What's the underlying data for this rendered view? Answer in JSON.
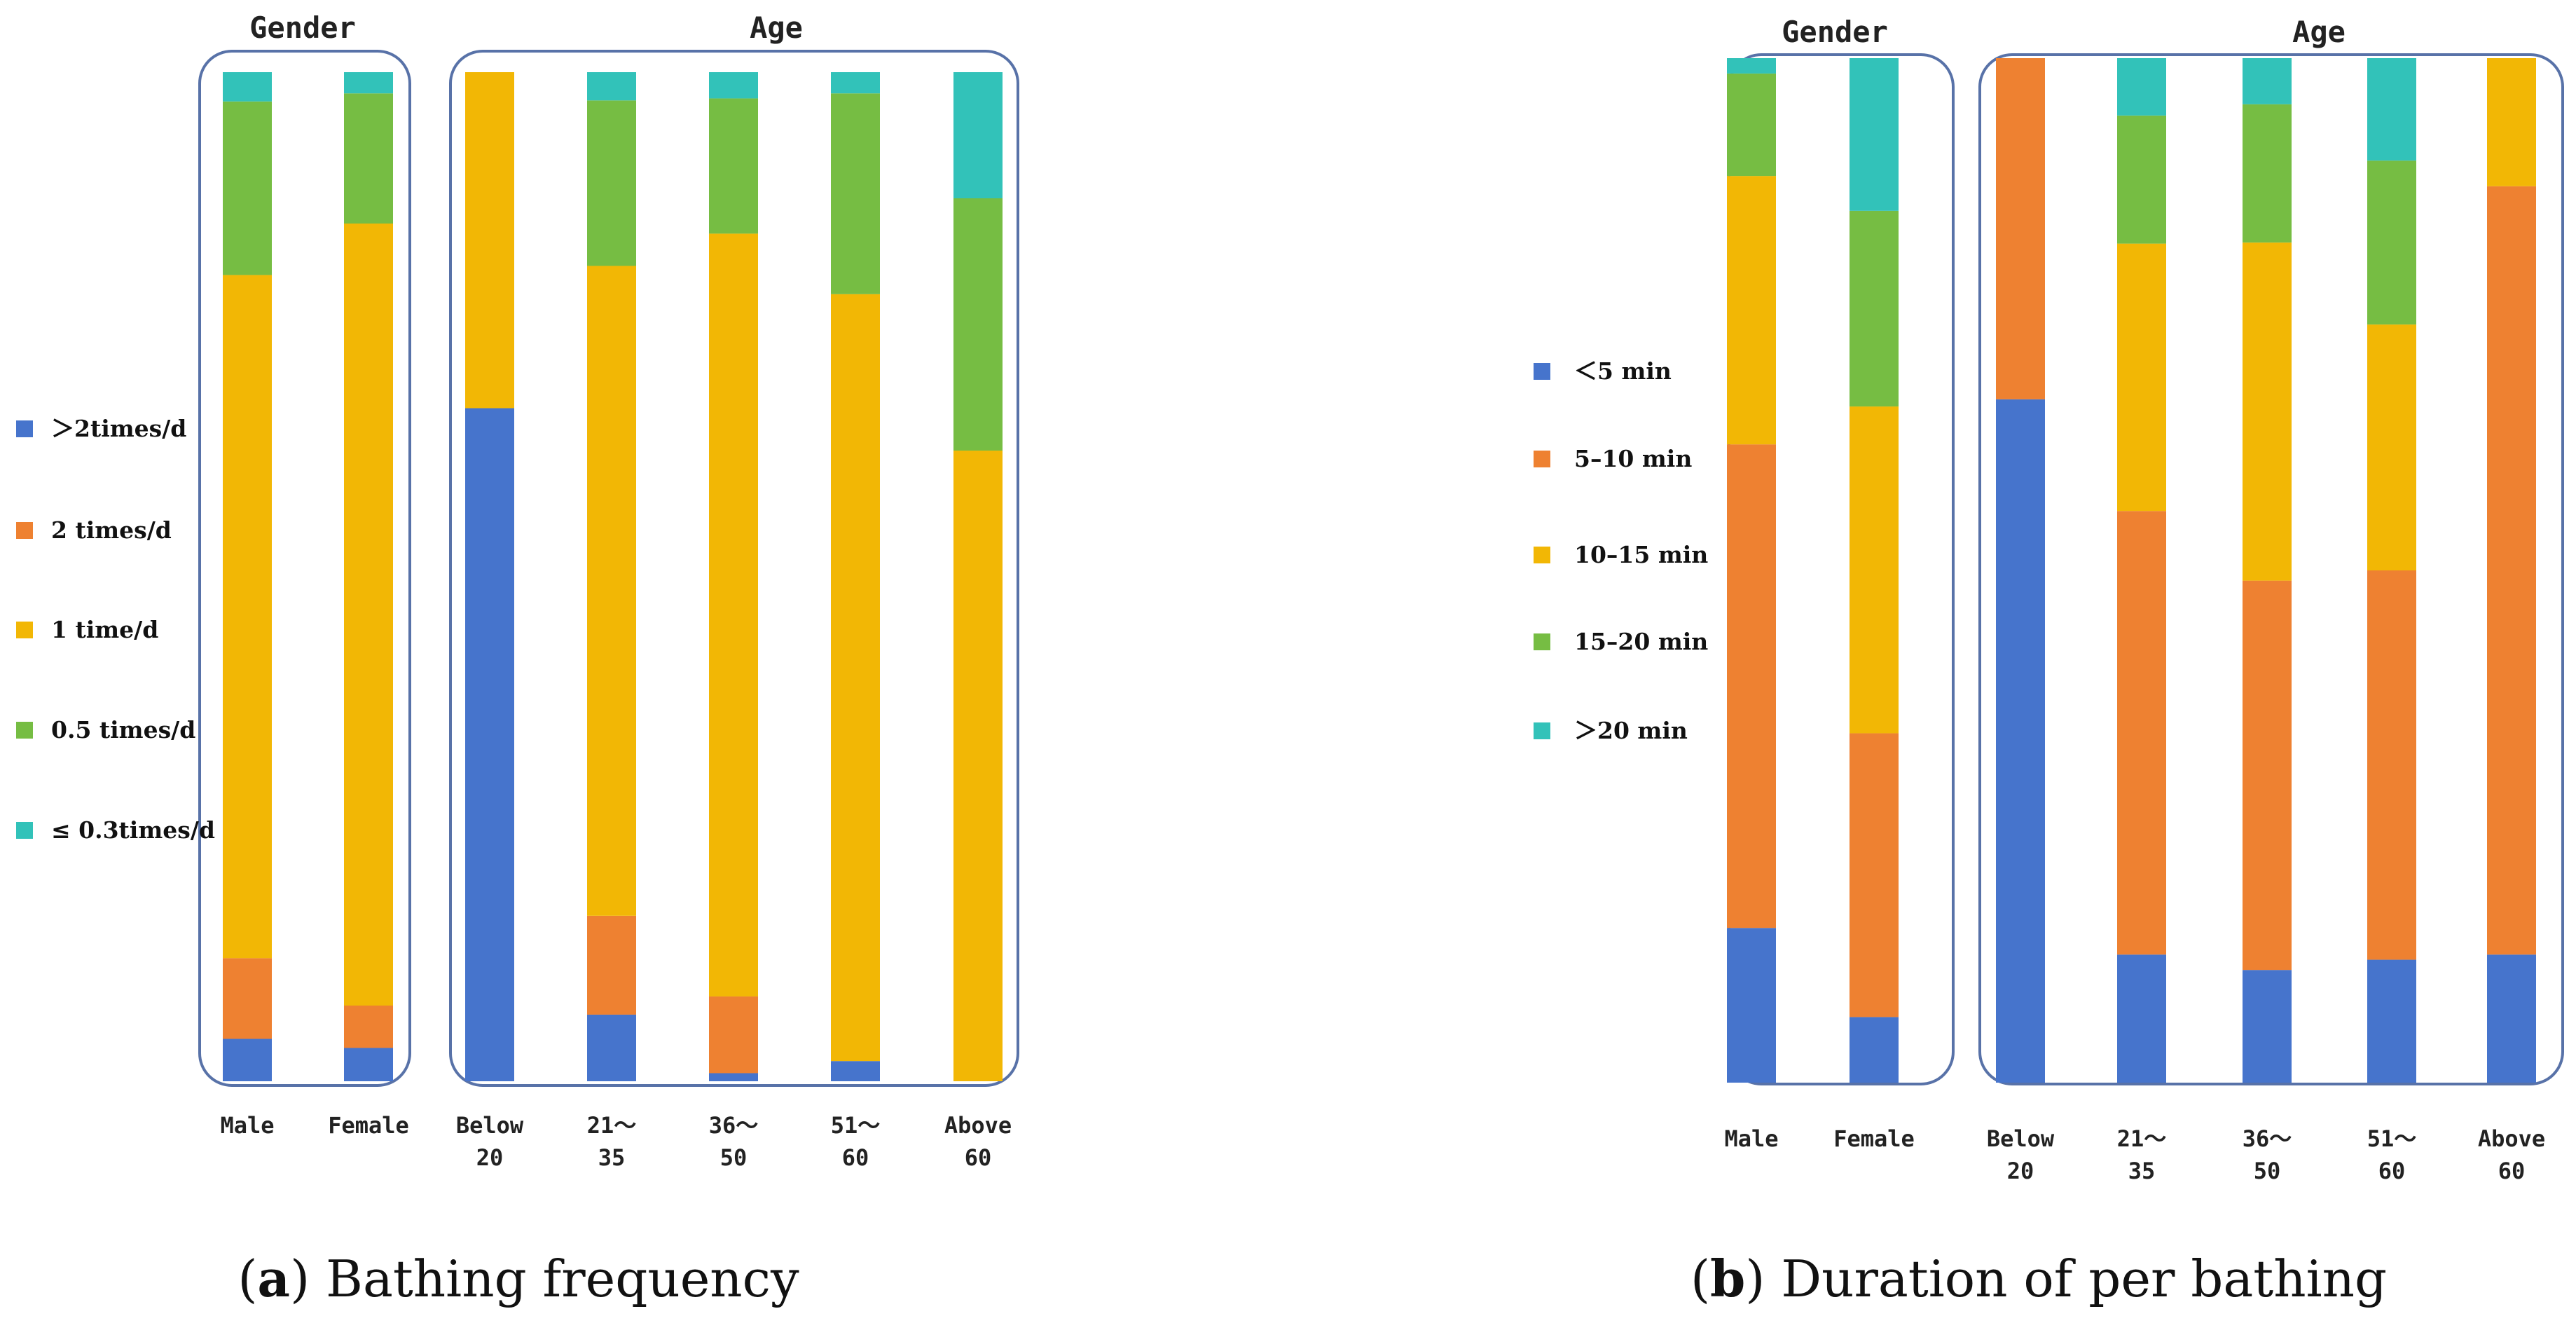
{
  "colors": {
    "blue": "#4674cc",
    "orange": "#ee8131",
    "yellow": "#f2b705",
    "green": "#76bd43",
    "teal": "#32c2b9",
    "frame": "#5872a8"
  },
  "chart_data": [
    {
      "type": "bar",
      "stacked": true,
      "normalized": true,
      "title": "Bathing frequency",
      "caption": {
        "letter": "a",
        "text": "Bathing frequency"
      },
      "group_titles": [
        "Gender",
        "Age"
      ],
      "groups": [
        {
          "title": "Gender",
          "categories": [
            "Male",
            "Female"
          ]
        },
        {
          "title": "Age",
          "categories": [
            "Below\n20",
            "21～\n35",
            "36～\n50",
            "51～\n60",
            "Above\n60"
          ]
        }
      ],
      "categories": [
        "Male",
        "Female",
        "Below 20",
        "21～35",
        "36～50",
        "51～60",
        "Above 60"
      ],
      "tick_labels": [
        [
          "Male"
        ],
        [
          "Female"
        ],
        [
          "Below",
          "20"
        ],
        [
          "21～",
          "35"
        ],
        [
          "36～",
          "50"
        ],
        [
          "51～",
          "60"
        ],
        [
          "Above",
          "60"
        ]
      ],
      "series": [
        {
          "name": "＞2times/d",
          "color": "#4674cc",
          "values": [
            4.2,
            3.3,
            66.7,
            6.6,
            0.8,
            2.0,
            0
          ]
        },
        {
          "name": "2 times/d",
          "color": "#ee8131",
          "values": [
            8.0,
            4.2,
            0,
            9.8,
            7.6,
            0,
            0
          ]
        },
        {
          "name": "1 time/d",
          "color": "#f2b705",
          "values": [
            67.7,
            77.5,
            33.3,
            64.4,
            75.6,
            76.0,
            62.5
          ]
        },
        {
          "name": "0.5 times/d",
          "color": "#76bd43",
          "values": [
            17.2,
            12.9,
            0,
            16.4,
            13.4,
            19.9,
            25.0
          ]
        },
        {
          "name": "≤ 0.3times/d",
          "color": "#32c2b9",
          "values": [
            2.9,
            2.1,
            0,
            2.8,
            2.6,
            2.1,
            12.5
          ]
        }
      ],
      "ylim": [
        0,
        100
      ],
      "legend": "left"
    },
    {
      "type": "bar",
      "stacked": true,
      "normalized": true,
      "title": "Duration of per bathing",
      "caption": {
        "letter": "b",
        "text": "Duration of per bathing"
      },
      "group_titles": [
        "Gender",
        "Age"
      ],
      "groups": [
        {
          "title": "Gender",
          "categories": [
            "Male",
            "Female"
          ]
        },
        {
          "title": "Age",
          "categories": [
            "Below\n20",
            "21～\n35",
            "36～\n50",
            "51～\n60",
            "Above\n60"
          ]
        }
      ],
      "categories": [
        "Male",
        "Female",
        "Below 20",
        "21～35",
        "36～50",
        "51～60",
        "Above 60"
      ],
      "tick_labels": [
        [
          "Male"
        ],
        [
          "Female"
        ],
        [
          "Below",
          "20"
        ],
        [
          "21～",
          "35"
        ],
        [
          "36～",
          "50"
        ],
        [
          "51～",
          "60"
        ],
        [
          "Above",
          "60"
        ]
      ],
      "series": [
        {
          "name": "＜5 min",
          "color": "#4674cc",
          "values": [
            15.1,
            6.4,
            66.7,
            12.5,
            11.0,
            12.0,
            12.5
          ]
        },
        {
          "name": "5–10 min",
          "color": "#ee8131",
          "values": [
            47.2,
            27.7,
            33.3,
            43.3,
            38.0,
            38.0,
            75.0
          ]
        },
        {
          "name": "10–15 min",
          "color": "#f2b705",
          "values": [
            26.2,
            31.9,
            0,
            26.1,
            33.0,
            24.0,
            12.5
          ]
        },
        {
          "name": "15–20 min",
          "color": "#76bd43",
          "values": [
            10.0,
            19.1,
            0,
            12.5,
            13.5,
            16.0,
            0
          ]
        },
        {
          "name": "＞20 min",
          "color": "#32c2b9",
          "values": [
            1.5,
            14.9,
            0,
            5.6,
            4.5,
            10.0,
            0
          ]
        }
      ],
      "ylim": [
        0,
        100
      ],
      "legend": "left"
    }
  ]
}
